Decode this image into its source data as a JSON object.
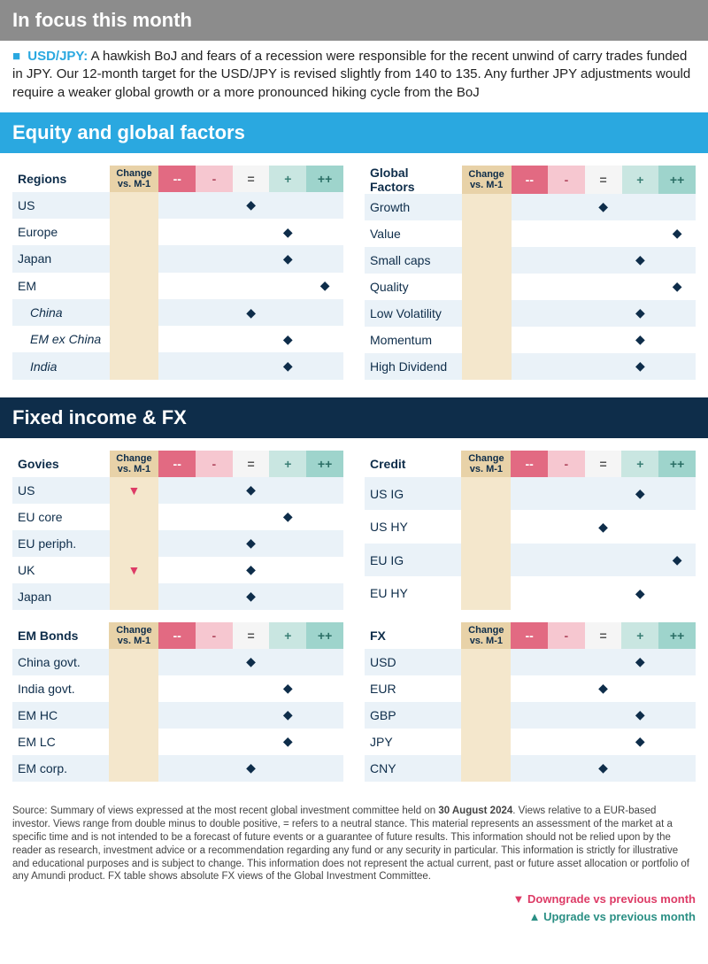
{
  "focus": {
    "header": "In focus this month",
    "bullet": "■",
    "ticker": "USD/JPY:",
    "text": "A hawkish BoJ and fears of a recession were responsible for the recent unwind of carry trades funded in JPY. Our 12-month target for the USD/JPY is revised slightly from 140 to 135. Any further JPY adjustments would require a weaker global growth or a more pronounced hiking cycle from the BoJ"
  },
  "headers": {
    "equity": "Equity and global factors",
    "fi": "Fixed income & FX"
  },
  "columns": {
    "change_line1": "Change",
    "change_line2": "vs. M-1",
    "mm": "--",
    "m": "-",
    "eq": "=",
    "p": "+",
    "pp": "++"
  },
  "tables": {
    "regions": {
      "title": "Regions",
      "rows": [
        {
          "name": "US",
          "rating": "eq"
        },
        {
          "name": "Europe",
          "rating": "p"
        },
        {
          "name": "Japan",
          "rating": "p"
        },
        {
          "name": "EM",
          "rating": "pp"
        },
        {
          "name": "China",
          "rating": "eq",
          "sub": true
        },
        {
          "name": "EM ex China",
          "rating": "p",
          "sub": true
        },
        {
          "name": "India",
          "rating": "p",
          "sub": true
        }
      ]
    },
    "global_factors": {
      "title": "Global\nFactors",
      "rows": [
        {
          "name": "Growth",
          "rating": "eq"
        },
        {
          "name": "Value",
          "rating": "pp"
        },
        {
          "name": "Small caps",
          "rating": "p"
        },
        {
          "name": "Quality",
          "rating": "pp"
        },
        {
          "name": "Low Volatility",
          "rating": "p"
        },
        {
          "name": "Momentum",
          "rating": "p"
        },
        {
          "name": "High Dividend",
          "rating": "p"
        }
      ]
    },
    "govies": {
      "title": "Govies",
      "rows": [
        {
          "name": "US",
          "rating": "eq",
          "change": "down"
        },
        {
          "name": "EU core",
          "rating": "p"
        },
        {
          "name": "EU periph.",
          "rating": "eq"
        },
        {
          "name": "UK",
          "rating": "eq",
          "change": "down"
        },
        {
          "name": "Japan",
          "rating": "eq"
        }
      ]
    },
    "credit": {
      "title": "Credit",
      "rows": [
        {
          "name": "US IG",
          "rating": "p"
        },
        {
          "name": "US HY",
          "rating": "eq"
        },
        {
          "name": "EU IG",
          "rating": "pp"
        },
        {
          "name": "EU HY",
          "rating": "p"
        }
      ]
    },
    "em_bonds": {
      "title": "EM Bonds",
      "rows": [
        {
          "name": "China govt.",
          "rating": "eq"
        },
        {
          "name": "India govt.",
          "rating": "p"
        },
        {
          "name": "EM HC",
          "rating": "p"
        },
        {
          "name": "EM LC",
          "rating": "p"
        },
        {
          "name": "EM corp.",
          "rating": "eq"
        }
      ]
    },
    "fx": {
      "title": "FX",
      "rows": [
        {
          "name": "USD",
          "rating": "p"
        },
        {
          "name": "EUR",
          "rating": "eq"
        },
        {
          "name": "GBP",
          "rating": "p"
        },
        {
          "name": "JPY",
          "rating": "p"
        },
        {
          "name": "CNY",
          "rating": "eq"
        }
      ]
    }
  },
  "footnote": "Source: Summary of views expressed at the most recent global investment committee held on 30 August 2024. Views relative to a EUR-based investor. Views range from double minus to double positive, = refers to a neutral stance. This material represents an assessment of the market at a specific time and is not intended to be a forecast of future events or a guarantee of future results. This information should not be relied upon by the reader as research, investment advice or a recommendation regarding any fund or any security in particular. This information is strictly for illustrative and educational purposes and is subject to change. This information does not represent the actual current, past or future asset allocation or portfolio of any Amundi product. FX table shows absolute FX views of the Global Investment Committee.",
  "footnote_bold": "30 August 2024",
  "legend": {
    "down": "▼ Downgrade vs previous month",
    "up": "▲ Upgrade vs previous month"
  },
  "glyphs": {
    "diamond": "◆",
    "down": "▼",
    "up": "▲"
  }
}
